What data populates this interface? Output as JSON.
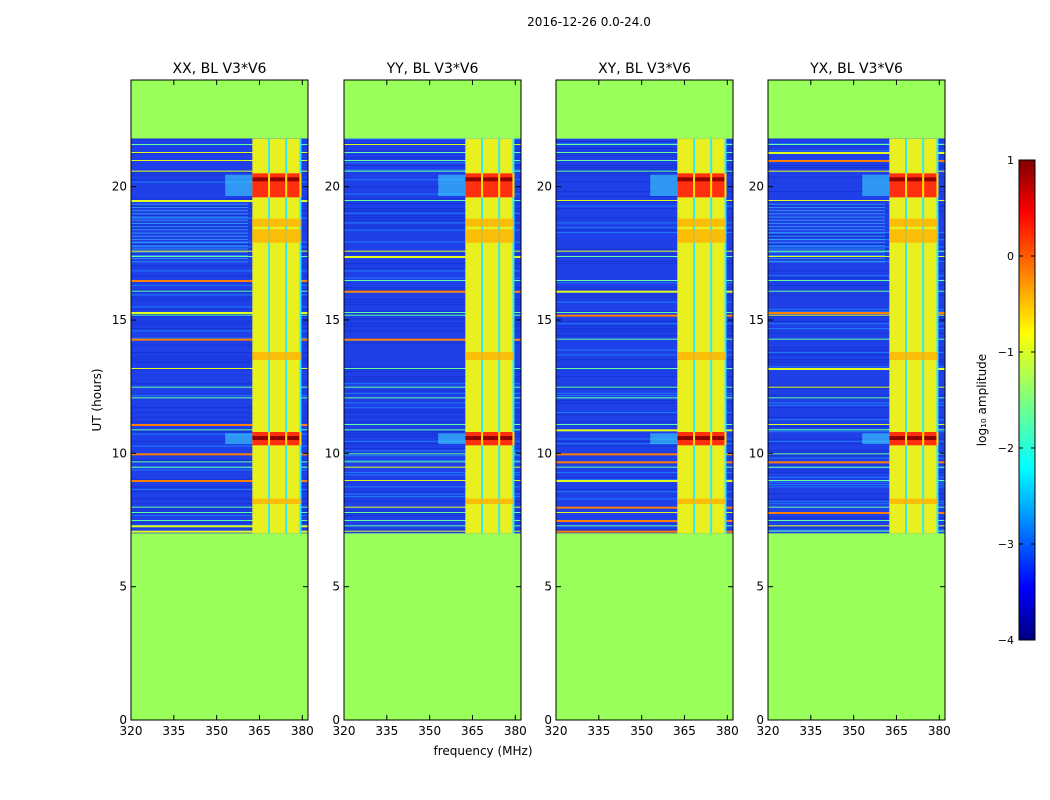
{
  "figure_title": "2016-12-26 0.0-24.0",
  "colors": {
    "no_data": "#99ff5a",
    "background_low": "#1f3fe8",
    "rfi_high": "#c80000"
  },
  "chart_data": {
    "type": "heatmap",
    "title": "2016-12-26 0.0-24.0",
    "xlabel": "frequency (MHz)",
    "ylabel": "UT (hours)",
    "xlim": [
      320,
      382
    ],
    "ylim": [
      0,
      24
    ],
    "xticks": [
      320,
      335,
      350,
      365,
      380
    ],
    "yticks": [
      0,
      5,
      10,
      15,
      20
    ],
    "data_time_range": [
      7.0,
      21.8
    ],
    "rfi_band_mhz": [
      361,
      381
    ],
    "colorbar": {
      "label": "log₁₀ amplitude",
      "range": [
        -4,
        1
      ],
      "ticks": [
        -4,
        -3,
        -2,
        -1,
        0,
        1
      ],
      "tick_labels": [
        "−4",
        "−3",
        "−2",
        "−1",
        "0",
        "1"
      ]
    },
    "panels": [
      {
        "title": "XX, BL V3*V6"
      },
      {
        "title": "YY, BL V3*V6"
      },
      {
        "title": "XY, BL V3*V6"
      },
      {
        "title": "YX, BL V3*V6"
      }
    ]
  }
}
